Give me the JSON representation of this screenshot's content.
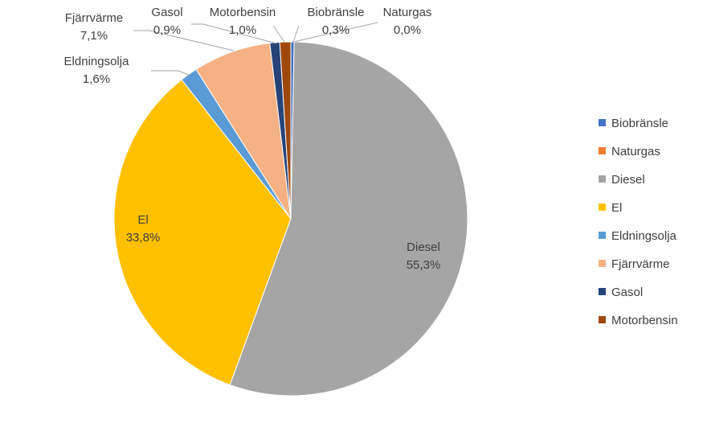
{
  "chart_data": {
    "type": "pie",
    "title": "",
    "legend_position": "right",
    "slices": [
      {
        "name": "Biobränsle",
        "value": 0.3,
        "label": "0,3%",
        "color": "#4472C4"
      },
      {
        "name": "Naturgas",
        "value": 0.0,
        "label": "0,0%",
        "color": "#ED7D31"
      },
      {
        "name": "Diesel",
        "value": 55.3,
        "label": "55,3%",
        "color": "#A5A5A5"
      },
      {
        "name": "El",
        "value": 33.8,
        "label": "33,8%",
        "color": "#FFC000"
      },
      {
        "name": "Eldningsolja",
        "value": 1.6,
        "label": "1,6%",
        "color": "#5B9BD5"
      },
      {
        "name": "Fjärrvärme",
        "value": 7.1,
        "label": "7,1%",
        "color": "#F4B183"
      },
      {
        "name": "Gasol",
        "value": 0.9,
        "label": "0,9%",
        "color": "#264478"
      },
      {
        "name": "Motorbensin",
        "value": 1.0,
        "label": "1,0%",
        "color": "#9E480E"
      }
    ]
  }
}
